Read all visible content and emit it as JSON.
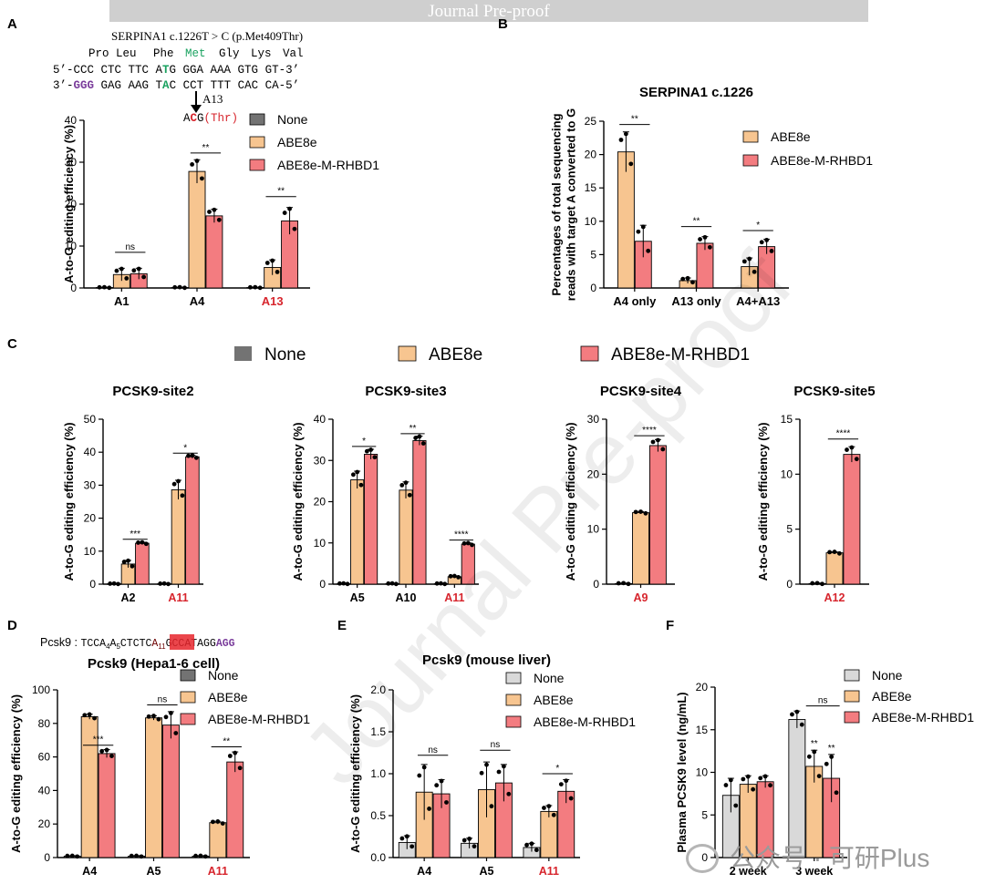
{
  "header": {
    "banner": "Journal Pre-proof",
    "watermark": "Journal Pre-proof",
    "wechat": "公众号 · 可研Plus"
  },
  "colors": {
    "none": "#737373",
    "none_light": "#d9d9d9",
    "abe8e": "#f7c590",
    "rhbd1": "#f37c80",
    "highlight": "#d7252d",
    "green": "#1aa260",
    "purple": "#7a3c9b"
  },
  "panel_labels": {
    "A": "A",
    "B": "B",
    "C": "C",
    "D": "D",
    "E": "E",
    "F": "F"
  },
  "seqA": {
    "title": "SERPINA1 c.1226T > C (p.Met409Thr)",
    "aa": [
      "Pro",
      "Leu",
      "Phe",
      "Met",
      "Gly",
      "Lys",
      "Val"
    ],
    "l1": {
      "a": "5’-CCC CTC TTC A",
      "b": "T",
      "c": "G GGA AAA GTG GT-3’"
    },
    "l2": {
      "a": "3’-",
      "b": "GGG",
      "c": " GAG AAG T",
      "d": "A",
      "e": "C CCT TTT CAC CA-5’"
    },
    "arrow_label": "A13",
    "mut": {
      "a": "A",
      "b": "C",
      "c": "G",
      "d": "(Thr)"
    }
  },
  "seqD": {
    "label": "Pcsk9 : ",
    "p1": "TCCA",
    "s1": "4",
    "p2": "A",
    "s2": "5",
    "p3": "CTCTC",
    "hl": "A",
    "hls": "11",
    "p4": "GCCATAGG",
    "pam": "AGG"
  },
  "chart_data": [
    {
      "id": "A",
      "type": "bar",
      "title": "",
      "ylabel": "A-to-G editing efficiency (%)",
      "ylim": [
        0,
        40
      ],
      "yticks": [
        0,
        10,
        20,
        30,
        40
      ],
      "categories": [
        "A1",
        "A4",
        "A13"
      ],
      "highlight_categories": [
        "A13"
      ],
      "legend": [
        "None",
        "ABE8e",
        "ABE8e-M-RHBD1"
      ],
      "series": [
        {
          "name": "None",
          "color": "none",
          "values": [
            0.1,
            0.1,
            0.1
          ],
          "err": [
            0.1,
            0.1,
            0.1
          ]
        },
        {
          "name": "ABE8e",
          "color": "abe8e",
          "values": [
            3.2,
            27.8,
            4.9
          ],
          "err": [
            1.5,
            2.8,
            1.8
          ]
        },
        {
          "name": "ABE8e-M-RHBD1",
          "color": "rhbd1",
          "values": [
            3.4,
            17.2,
            16.0
          ],
          "err": [
            1.3,
            1.6,
            3.2
          ]
        }
      ],
      "significance": [
        {
          "cat": 0,
          "label": "ns",
          "y": 8.5
        },
        {
          "cat": 1,
          "label": "**",
          "y": 32.2
        },
        {
          "cat": 2,
          "label": "**",
          "y": 21.8
        }
      ]
    },
    {
      "id": "B",
      "type": "bar",
      "title": "SERPINA1 c.1226",
      "ylabel": "Percentages of total sequencing reads with target A converted to G",
      "ylim": [
        0,
        25
      ],
      "yticks": [
        0,
        5,
        10,
        15,
        20,
        25
      ],
      "categories": [
        "A4 only",
        "A13 only",
        "A4+A13"
      ],
      "highlight_categories": [],
      "legend": [
        "ABE8e",
        "ABE8e-M-RHBD1"
      ],
      "series": [
        {
          "name": "ABE8e",
          "color": "abe8e",
          "values": [
            20.4,
            1.1,
            3.2
          ],
          "err": [
            3.0,
            0.4,
            1.3
          ]
        },
        {
          "name": "ABE8e-M-RHBD1",
          "color": "rhbd1",
          "values": [
            7.0,
            6.7,
            6.2
          ],
          "err": [
            2.4,
            1.0,
            1.1
          ]
        }
      ],
      "significance": [
        {
          "cat": 0,
          "label": "**",
          "y": 24.5
        },
        {
          "cat": 1,
          "label": "**",
          "y": 9.2
        },
        {
          "cat": 2,
          "label": "*",
          "y": 8.6
        }
      ]
    },
    {
      "id": "C1",
      "type": "bar",
      "title": "PCSK9-site2",
      "ylabel": "A-to-G editing efficiency (%)",
      "ylim": [
        0,
        50
      ],
      "yticks": [
        0,
        10,
        20,
        30,
        40,
        50
      ],
      "categories": [
        "A2",
        "A11"
      ],
      "highlight_categories": [
        "A11"
      ],
      "series": [
        {
          "name": "None",
          "color": "none",
          "values": [
            0.1,
            0.1
          ],
          "err": [
            0.1,
            0.1
          ]
        },
        {
          "name": "ABE8e",
          "color": "abe8e",
          "values": [
            6.1,
            28.6
          ],
          "err": [
            1.1,
            2.9
          ]
        },
        {
          "name": "ABE8e-M-RHBD1",
          "color": "rhbd1",
          "values": [
            12.4,
            38.6
          ],
          "err": [
            0.3,
            0.5
          ]
        }
      ],
      "significance": [
        {
          "cat": 0,
          "label": "***",
          "y": 13.6
        },
        {
          "cat": 1,
          "label": "*",
          "y": 39.7
        }
      ]
    },
    {
      "id": "C2",
      "type": "bar",
      "title": "PCSK9-site3",
      "ylabel": "A-to-G editing efficiency (%)",
      "ylim": [
        0,
        40
      ],
      "yticks": [
        0,
        10,
        20,
        30,
        40
      ],
      "categories": [
        "A5",
        "A10",
        "A11"
      ],
      "highlight_categories": [
        "A11"
      ],
      "series": [
        {
          "name": "None",
          "color": "none",
          "values": [
            0.1,
            0.1,
            0.1
          ],
          "err": [
            0.1,
            0.1,
            0.1
          ]
        },
        {
          "name": "ABE8e",
          "color": "abe8e",
          "values": [
            25.3,
            22.8,
            1.8
          ],
          "err": [
            2.1,
            2.0,
            0.2
          ]
        },
        {
          "name": "ABE8e-M-RHBD1",
          "color": "rhbd1",
          "values": [
            31.5,
            34.8,
            9.7
          ],
          "err": [
            1.2,
            1.1,
            0.3
          ]
        }
      ],
      "significance": [
        {
          "cat": 0,
          "label": "*",
          "y": 33.4
        },
        {
          "cat": 1,
          "label": "**",
          "y": 36.5
        },
        {
          "cat": 2,
          "label": "****",
          "y": 10.7
        }
      ]
    },
    {
      "id": "C3",
      "type": "bar",
      "title": "PCSK9-site4",
      "ylabel": "A-to-G editing efficiency (%)",
      "ylim": [
        0,
        30
      ],
      "yticks": [
        0,
        10,
        20,
        30
      ],
      "categories": [
        "A9"
      ],
      "highlight_categories": [
        "A9"
      ],
      "series": [
        {
          "name": "None",
          "color": "none",
          "values": [
            0.1
          ],
          "err": [
            0.1
          ]
        },
        {
          "name": "ABE8e",
          "color": "abe8e",
          "values": [
            13.0
          ],
          "err": [
            0.2
          ]
        },
        {
          "name": "ABE8e-M-RHBD1",
          "color": "rhbd1",
          "values": [
            25.2
          ],
          "err": [
            1.1
          ]
        }
      ],
      "significance": [
        {
          "cat": 0,
          "label": "****",
          "y": 27.0
        }
      ]
    },
    {
      "id": "C4",
      "type": "bar",
      "title": "PCSK9-site5",
      "ylabel": "A-to-G editing efficiency (%)",
      "ylim": [
        0,
        15
      ],
      "yticks": [
        0,
        5,
        10,
        15
      ],
      "categories": [
        "A12"
      ],
      "highlight_categories": [
        "A12"
      ],
      "series": [
        {
          "name": "None",
          "color": "none",
          "values": [
            0.05
          ],
          "err": [
            0.05
          ]
        },
        {
          "name": "ABE8e",
          "color": "abe8e",
          "values": [
            2.85
          ],
          "err": [
            0.1
          ]
        },
        {
          "name": "ABE8e-M-RHBD1",
          "color": "rhbd1",
          "values": [
            11.8
          ],
          "err": [
            0.7
          ]
        }
      ],
      "significance": [
        {
          "cat": 0,
          "label": "****",
          "y": 13.2
        }
      ]
    },
    {
      "id": "D",
      "type": "bar",
      "title": "Pcsk9 (Hepa1-6 cell)",
      "ylabel": "A-to-G editing efficiency (%)",
      "ylim": [
        0,
        100
      ],
      "yticks": [
        0,
        20,
        40,
        60,
        80,
        100
      ],
      "categories": [
        "A4",
        "A5",
        "A11"
      ],
      "highlight_categories": [
        "A11"
      ],
      "legend": [
        "None",
        "ABE8e",
        "ABE8e-M-RHBD1"
      ],
      "series": [
        {
          "name": "None",
          "color": "none",
          "values": [
            0.8,
            0.8,
            0.8
          ],
          "err": [
            0.3,
            0.3,
            0.3
          ]
        },
        {
          "name": "ABE8e",
          "color": "abe8e",
          "values": [
            84.0,
            83.3,
            20.8
          ],
          "err": [
            1.5,
            1.3,
            0.8
          ]
        },
        {
          "name": "ABE8e-M-RHBD1",
          "color": "rhbd1",
          "values": [
            62.0,
            79.0,
            57.0
          ],
          "err": [
            2.4,
            8.0,
            6.0
          ]
        }
      ],
      "significance": [
        {
          "cat": 0,
          "label": "***",
          "y": 67
        },
        {
          "cat": 1,
          "label": "ns",
          "y": 91
        },
        {
          "cat": 2,
          "label": "**",
          "y": 66
        }
      ]
    },
    {
      "id": "E",
      "type": "bar",
      "title": "Pcsk9 (mouse liver)",
      "ylabel": "A-to-G editing efficiency (%)",
      "ylim": [
        0,
        2.0
      ],
      "yticks": [
        0.0,
        0.5,
        1.0,
        1.5,
        2.0
      ],
      "categories": [
        "A4",
        "A5",
        "A11"
      ],
      "highlight_categories": [
        "A11"
      ],
      "legend": [
        "None",
        "ABE8e",
        "ABE8e-M-RHBD1"
      ],
      "series": [
        {
          "name": "None",
          "color": "none_light",
          "values": [
            0.18,
            0.17,
            0.12
          ],
          "err": [
            0.08,
            0.06,
            0.05
          ]
        },
        {
          "name": "ABE8e",
          "color": "abe8e",
          "values": [
            0.78,
            0.81,
            0.55
          ],
          "err": [
            0.33,
            0.33,
            0.07
          ]
        },
        {
          "name": "ABE8e-M-RHBD1",
          "color": "rhbd1",
          "values": [
            0.76,
            0.89,
            0.79
          ],
          "err": [
            0.17,
            0.22,
            0.14
          ]
        }
      ],
      "significance": [
        {
          "cat": 0,
          "label": "ns",
          "y": 1.22
        },
        {
          "cat": 1,
          "label": "ns",
          "y": 1.28
        },
        {
          "cat": 2,
          "label": "*",
          "y": 1.0
        }
      ]
    },
    {
      "id": "F",
      "type": "bar",
      "title": "",
      "ylabel": "Plasma PCSK9 level (ng/mL)",
      "ylim": [
        0,
        20
      ],
      "yticks": [
        0,
        5,
        10,
        15,
        20
      ],
      "categories": [
        "2 week",
        "3 week"
      ],
      "highlight_categories": [],
      "legend": [
        "None",
        "ABE8e",
        "ABE8e-M-RHBD1"
      ],
      "series": [
        {
          "name": "None",
          "color": "none_light",
          "values": [
            7.3,
            16.2
          ],
          "err": [
            2.0,
            1.0
          ]
        },
        {
          "name": "ABE8e",
          "color": "abe8e",
          "values": [
            8.6,
            10.7
          ],
          "err": [
            1.0,
            1.9
          ]
        },
        {
          "name": "ABE8e-M-RHBD1",
          "color": "rhbd1",
          "values": [
            8.9,
            9.3
          ],
          "err": [
            0.7,
            2.8
          ]
        }
      ],
      "stars": [
        {
          "cat": 1,
          "series": 1,
          "label": "**"
        },
        {
          "cat": 1,
          "series": 2,
          "label": "**"
        }
      ],
      "significance": [
        {
          "cat": 1,
          "label": "ns",
          "y": 17.8,
          "from": 1,
          "to": 2
        }
      ]
    }
  ],
  "legend_C": [
    "None",
    "ABE8e",
    "ABE8e-M-RHBD1"
  ]
}
